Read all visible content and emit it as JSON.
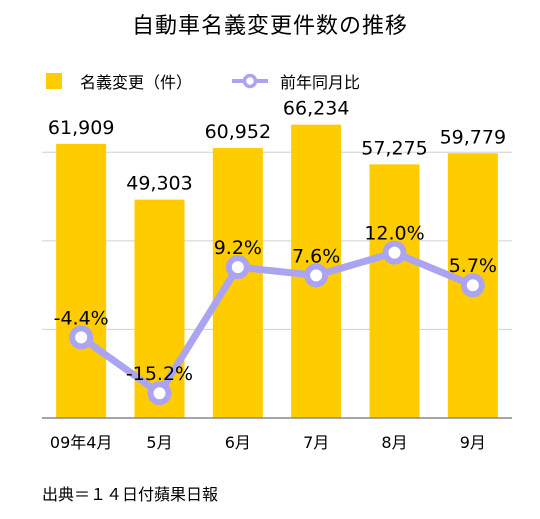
{
  "chart_data": {
    "type": "bar",
    "title": "自動車名義変更件数の推移",
    "categories": [
      "09年4月",
      "5月",
      "6月",
      "7月",
      "8月",
      "9月"
    ],
    "series": [
      {
        "name": "名義変更（件）",
        "type": "bar",
        "color": "#FFCC00",
        "values": [
          61909,
          49303,
          60952,
          66234,
          57275,
          59779
        ],
        "labels": [
          "61,909",
          "49,303",
          "60,952",
          "66,234",
          "57,275",
          "59,779"
        ]
      },
      {
        "name": "前年同月比",
        "type": "line",
        "color": "#AAA4F2",
        "values": [
          -4.4,
          -15.2,
          9.2,
          7.6,
          12.0,
          5.7
        ],
        "labels": [
          "-4.4%",
          "-15.2%",
          "9.2%",
          "7.6%",
          "12.0%",
          "5.7%"
        ]
      }
    ],
    "ylim": [
      0,
      70000
    ],
    "y2lim": [
      -20,
      40
    ],
    "grid": true,
    "legend_position": "top-left",
    "source": "出典＝１４日付蘋果日報"
  }
}
